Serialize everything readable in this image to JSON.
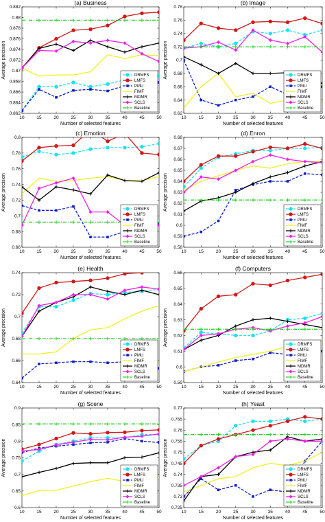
{
  "chart_data": [
    {
      "type": "line",
      "title": "(a) Business",
      "xlabel": "Number of selected features",
      "ylabel": "Average precision",
      "x": [
        10,
        15,
        20,
        25,
        30,
        35,
        40,
        45,
        50
      ],
      "xlim": [
        10,
        50
      ],
      "ylim": [
        0.862,
        0.882
      ],
      "yticks": [
        "0.862",
        "0.864",
        "0.866",
        "0.868",
        "0.87",
        "0.872",
        "0.874",
        "0.876",
        "0.878",
        "0.88",
        "0.882"
      ],
      "legend_position": "right-bottom",
      "series": [
        {
          "name": "DRMFS",
          "values": [
            0.8625,
            0.867,
            0.867,
            0.8678,
            0.867,
            0.8675,
            0.8683,
            0.8685,
            0.869
          ]
        },
        {
          "name": "LMFS",
          "values": [
            0.8705,
            0.8743,
            0.876,
            0.8776,
            0.8778,
            0.8785,
            0.8802,
            0.8808,
            0.881
          ]
        },
        {
          "name": "PMU",
          "values": [
            0.8625,
            0.8665,
            0.865,
            0.8663,
            0.8665,
            0.8662,
            0.8672,
            0.868,
            0.8678
          ]
        },
        {
          "name": "FIMF",
          "values": [
            0.8705,
            0.869,
            0.8692,
            0.8692,
            0.8698,
            0.873,
            0.8723,
            0.873,
            0.8728
          ]
        },
        {
          "name": "MDMR",
          "values": [
            0.8705,
            0.8742,
            0.875,
            0.8738,
            0.8757,
            0.8745,
            0.8735,
            0.8745,
            0.8752
          ]
        },
        {
          "name": "SCLS",
          "values": [
            0.8705,
            0.8738,
            0.8737,
            0.8755,
            0.8752,
            0.8757,
            0.8752,
            0.8732,
            0.8717
          ]
        },
        {
          "name": "Baseline",
          "values": [
            0.8795,
            0.8795,
            0.8795,
            0.8795,
            0.8795,
            0.8795,
            0.8795,
            0.8795,
            0.8795
          ]
        }
      ]
    },
    {
      "type": "line",
      "title": "(b) Image",
      "xlabel": "Number of selected features",
      "ylabel": "Average precision",
      "x": [
        10,
        15,
        20,
        25,
        30,
        35,
        40,
        45,
        50
      ],
      "xlim": [
        10,
        50
      ],
      "ylim": [
        0.62,
        0.78
      ],
      "yticks": [
        "0.62",
        "0.64",
        "0.66",
        "0.68",
        "0.7",
        "0.72",
        "0.74",
        "0.76",
        "0.78"
      ],
      "legend_position": "right-bottom",
      "series": [
        {
          "name": "DRMFS",
          "values": [
            0.718,
            0.725,
            0.72,
            0.725,
            0.743,
            0.74,
            0.745,
            0.738,
            0.745
          ]
        },
        {
          "name": "LMFS",
          "values": [
            0.73,
            0.755,
            0.748,
            0.745,
            0.757,
            0.758,
            0.757,
            0.763,
            0.755
          ]
        },
        {
          "name": "PMU",
          "values": [
            0.7,
            0.64,
            0.632,
            0.64,
            0.645,
            0.66,
            0.648,
            0.66,
            0.66
          ]
        },
        {
          "name": "FIMF",
          "values": [
            0.628,
            0.66,
            0.68,
            0.645,
            0.65,
            0.635,
            0.64,
            0.64,
            0.635
          ]
        },
        {
          "name": "MDMR",
          "values": [
            0.705,
            0.693,
            0.68,
            0.695,
            0.68,
            0.68,
            0.681,
            0.678,
            0.665
          ]
        },
        {
          "name": "SCLS",
          "values": [
            0.718,
            0.72,
            0.727,
            0.715,
            0.745,
            0.73,
            0.725,
            0.735,
            0.712
          ]
        },
        {
          "name": "Baseline",
          "values": [
            0.72,
            0.72,
            0.72,
            0.72,
            0.72,
            0.72,
            0.72,
            0.72,
            0.72
          ]
        }
      ]
    },
    {
      "type": "line",
      "title": "(c) Emotion",
      "xlabel": "Number of selected features",
      "ylabel": "Average precision",
      "x": [
        10,
        15,
        20,
        25,
        30,
        35,
        40,
        45,
        50
      ],
      "xlim": [
        10,
        50
      ],
      "ylim": [
        0.66,
        0.8
      ],
      "yticks": [
        "0.66",
        "0.68",
        "0.7",
        "0.72",
        "0.74",
        "0.76",
        "0.78",
        "0.8"
      ],
      "legend_position": "right-bottom",
      "series": [
        {
          "name": "DRMFS",
          "values": [
            0.775,
            0.782,
            0.778,
            0.78,
            0.785,
            0.787,
            0.787,
            0.788,
            0.792
          ]
        },
        {
          "name": "LMFS",
          "values": [
            0.77,
            0.787,
            0.789,
            0.79,
            0.81,
            0.795,
            0.805,
            0.78,
            0.778
          ]
        },
        {
          "name": "PMU",
          "values": [
            0.713,
            0.707,
            0.707,
            0.712,
            0.673,
            0.673,
            0.68,
            0.687,
            0.69
          ]
        },
        {
          "name": "FIMF",
          "values": [
            0.728,
            0.748,
            0.744,
            0.745,
            0.748,
            0.75,
            0.745,
            0.745,
            0.75
          ]
        },
        {
          "name": "MDMR",
          "values": [
            0.737,
            0.72,
            0.737,
            0.733,
            0.728,
            0.752,
            0.745,
            0.744,
            0.755
          ]
        },
        {
          "name": "SCLS",
          "values": [
            0.688,
            0.735,
            0.742,
            0.748,
            0.705,
            0.705,
            0.688,
            0.688,
            0.688
          ]
        },
        {
          "name": "Baseline",
          "values": [
            0.692,
            0.692,
            0.692,
            0.692,
            0.692,
            0.692,
            0.692,
            0.692,
            0.692
          ]
        }
      ]
    },
    {
      "type": "line",
      "title": "(d) Enron",
      "xlabel": "Number of selected features",
      "ylabel": "Average precision",
      "x": [
        10,
        15,
        20,
        25,
        30,
        35,
        40,
        45,
        50
      ],
      "xlim": [
        10,
        50
      ],
      "ylim": [
        0.58,
        0.68
      ],
      "yticks": [
        "0.58",
        "0.59",
        "0.6",
        "0.61",
        "0.62",
        "0.63",
        "0.64",
        "0.65",
        "0.66",
        "0.67",
        "0.68"
      ],
      "legend_position": "right-bottom",
      "series": [
        {
          "name": "DRMFS",
          "values": [
            0.635,
            0.652,
            0.662,
            0.665,
            0.668,
            0.668,
            0.67,
            0.67,
            0.671
          ]
        },
        {
          "name": "LMFS",
          "values": [
            0.64,
            0.655,
            0.663,
            0.663,
            0.667,
            0.671,
            0.67,
            0.674,
            0.67
          ]
        },
        {
          "name": "PMU",
          "values": [
            0.59,
            0.594,
            0.604,
            0.632,
            0.637,
            0.64,
            0.64,
            0.647,
            0.646
          ]
        },
        {
          "name": "FIMF",
          "values": [
            0.632,
            0.64,
            0.645,
            0.65,
            0.654,
            0.652,
            0.656,
            0.658,
            0.658
          ]
        },
        {
          "name": "MDMR",
          "values": [
            0.613,
            0.622,
            0.625,
            0.63,
            0.638,
            0.644,
            0.648,
            0.654,
            0.658
          ]
        },
        {
          "name": "SCLS",
          "values": [
            0.63,
            0.644,
            0.642,
            0.65,
            0.658,
            0.664,
            0.66,
            0.658,
            0.657
          ]
        },
        {
          "name": "Baseline",
          "values": [
            0.623,
            0.623,
            0.623,
            0.623,
            0.623,
            0.623,
            0.623,
            0.623,
            0.623
          ]
        }
      ]
    },
    {
      "type": "line",
      "title": "(e) Health",
      "xlabel": "Number of selected features",
      "ylabel": "Average precision",
      "x": [
        10,
        15,
        20,
        25,
        30,
        35,
        40,
        45,
        50
      ],
      "xlim": [
        10,
        50
      ],
      "ylim": [
        0.64,
        0.74
      ],
      "yticks": [
        "0.64",
        "0.66",
        "0.68",
        "0.7",
        "0.72",
        "0.74"
      ],
      "legend_position": "right-bottom",
      "series": [
        {
          "name": "DRMFS",
          "values": [
            0.685,
            0.709,
            0.709,
            0.715,
            0.721,
            0.72,
            0.722,
            0.723,
            0.725
          ]
        },
        {
          "name": "LMFS",
          "values": [
            0.703,
            0.726,
            0.731,
            0.732,
            0.733,
            0.735,
            0.739,
            0.74,
            0.743
          ]
        },
        {
          "name": "PMU",
          "values": [
            0.644,
            0.657,
            0.658,
            0.659,
            0.659,
            0.658,
            0.659,
            0.66,
            0.653
          ]
        },
        {
          "name": "FIMF",
          "values": [
            0.666,
            0.666,
            0.668,
            0.68,
            0.688,
            0.69,
            0.698,
            0.705,
            0.71
          ]
        },
        {
          "name": "MDMR",
          "values": [
            0.682,
            0.705,
            0.713,
            0.718,
            0.727,
            0.723,
            0.72,
            0.724,
            0.72
          ]
        },
        {
          "name": "SCLS",
          "values": [
            0.682,
            0.71,
            0.713,
            0.72,
            0.72,
            0.716,
            0.724,
            0.727,
            0.725
          ]
        },
        {
          "name": "Baseline",
          "values": [
            0.68,
            0.68,
            0.68,
            0.68,
            0.68,
            0.68,
            0.68,
            0.68,
            0.68
          ]
        }
      ]
    },
    {
      "type": "line",
      "title": "(f) Computers",
      "xlabel": "Number of selected features",
      "ylabel": "Average precision",
      "x": [
        10,
        15,
        20,
        25,
        30,
        35,
        40,
        45,
        50
      ],
      "xlim": [
        10,
        50
      ],
      "ylim": [
        0.59,
        0.66
      ],
      "yticks": [
        "0.59",
        "0.6",
        "0.61",
        "0.62",
        "0.63",
        "0.64",
        "0.65",
        "0.66"
      ],
      "legend_position": "right-bottom",
      "series": [
        {
          "name": "DRMFS",
          "values": [
            0.612,
            0.622,
            0.621,
            0.62,
            0.62,
            0.623,
            0.63,
            0.631,
            0.634
          ]
        },
        {
          "name": "LMFS",
          "values": [
            0.623,
            0.637,
            0.645,
            0.646,
            0.653,
            0.652,
            0.655,
            0.657,
            0.659
          ]
        },
        {
          "name": "PMU",
          "values": [
            0.597,
            0.6,
            0.601,
            0.604,
            0.605,
            0.609,
            0.608,
            0.61,
            0.61
          ]
        },
        {
          "name": "FIMF",
          "values": [
            0.597,
            0.6,
            0.603,
            0.606,
            0.608,
            0.61,
            0.613,
            0.615,
            0.617
          ]
        },
        {
          "name": "MDMR",
          "values": [
            0.611,
            0.617,
            0.62,
            0.626,
            0.63,
            0.631,
            0.629,
            0.627,
            0.625
          ]
        },
        {
          "name": "SCLS",
          "values": [
            0.611,
            0.62,
            0.621,
            0.624,
            0.625,
            0.623,
            0.626,
            0.628,
            0.632
          ]
        },
        {
          "name": "Baseline",
          "values": [
            0.624,
            0.624,
            0.624,
            0.624,
            0.624,
            0.624,
            0.624,
            0.624,
            0.624
          ]
        }
      ]
    },
    {
      "type": "line",
      "title": "(g) Scene",
      "xlabel": "Number of selected features",
      "ylabel": "Average precision",
      "x": [
        10,
        15,
        20,
        25,
        30,
        35,
        40,
        45,
        50
      ],
      "xlim": [
        10,
        50
      ],
      "ylim": [
        0.6,
        0.9
      ],
      "yticks": [
        "0.6",
        "0.65",
        "0.7",
        "0.75",
        "0.8",
        "0.85",
        "0.9"
      ],
      "legend_position": "right-bottom",
      "series": [
        {
          "name": "DRMFS",
          "values": [
            0.74,
            0.77,
            0.79,
            0.8,
            0.81,
            0.81,
            0.81,
            0.82,
            0.82
          ]
        },
        {
          "name": "LMFS",
          "values": [
            0.776,
            0.79,
            0.808,
            0.825,
            0.822,
            0.826,
            0.827,
            0.832,
            0.834
          ]
        },
        {
          "name": "PMU",
          "values": [
            0.766,
            0.779,
            0.785,
            0.79,
            0.795,
            0.797,
            0.808,
            0.8,
            0.796
          ]
        },
        {
          "name": "FIMF",
          "values": [
            0.636,
            0.651,
            0.652,
            0.665,
            0.678,
            0.688,
            0.679,
            0.688,
            0.69
          ]
        },
        {
          "name": "MDMR",
          "values": [
            0.693,
            0.706,
            0.718,
            0.733,
            0.735,
            0.735,
            0.75,
            0.752,
            0.765
          ]
        },
        {
          "name": "SCLS",
          "values": [
            0.77,
            0.775,
            0.789,
            0.797,
            0.805,
            0.804,
            0.812,
            0.815,
            0.822
          ]
        },
        {
          "name": "Baseline",
          "values": [
            0.852,
            0.852,
            0.852,
            0.852,
            0.852,
            0.852,
            0.852,
            0.852,
            0.852
          ]
        }
      ]
    },
    {
      "type": "line",
      "title": "(h) Yeast",
      "xlabel": "Number of selected features",
      "ylabel": "Average precision",
      "x": [
        10,
        15,
        20,
        25,
        30,
        35,
        40,
        45,
        50
      ],
      "xlim": [
        10,
        50
      ],
      "ylim": [
        0.725,
        0.77
      ],
      "yticks": [
        "0.725",
        "0.73",
        "0.735",
        "0.74",
        "0.745",
        "0.75",
        "0.755",
        "0.76",
        "0.765",
        "0.77"
      ],
      "legend_position": "right-bottom",
      "series": [
        {
          "name": "DRMFS",
          "values": [
            0.747,
            0.753,
            0.755,
            0.762,
            0.764,
            0.764,
            0.765,
            0.764,
            0.765
          ]
        },
        {
          "name": "LMFS",
          "values": [
            0.745,
            0.753,
            0.756,
            0.758,
            0.76,
            0.762,
            0.764,
            0.766,
            0.765
          ]
        },
        {
          "name": "PMU",
          "values": [
            0.73,
            0.738,
            0.733,
            0.735,
            0.73,
            0.733,
            0.732,
            0.746,
            0.755
          ]
        },
        {
          "name": "FIMF",
          "values": [
            0.732,
            0.735,
            0.738,
            0.739,
            0.743,
            0.745,
            0.744,
            0.746,
            0.75
          ]
        },
        {
          "name": "MDMR",
          "values": [
            0.728,
            0.739,
            0.74,
            0.748,
            0.75,
            0.751,
            0.757,
            0.755,
            0.756
          ]
        },
        {
          "name": "SCLS",
          "values": [
            0.735,
            0.739,
            0.743,
            0.748,
            0.749,
            0.755,
            0.756,
            0.755,
            0.755
          ]
        },
        {
          "name": "Baseline",
          "values": [
            0.758,
            0.758,
            0.758,
            0.758,
            0.758,
            0.758,
            0.758,
            0.758,
            0.758
          ]
        }
      ]
    }
  ],
  "style": {
    "series_colors": {
      "DRMFS": "#1ee0f0",
      "LMFS": "#d01818",
      "PMU": "#1020c8",
      "FIMF": "#f0f020",
      "MDMR": "#000000",
      "SCLS": "#f020e8",
      "Baseline": "#28d028"
    }
  }
}
